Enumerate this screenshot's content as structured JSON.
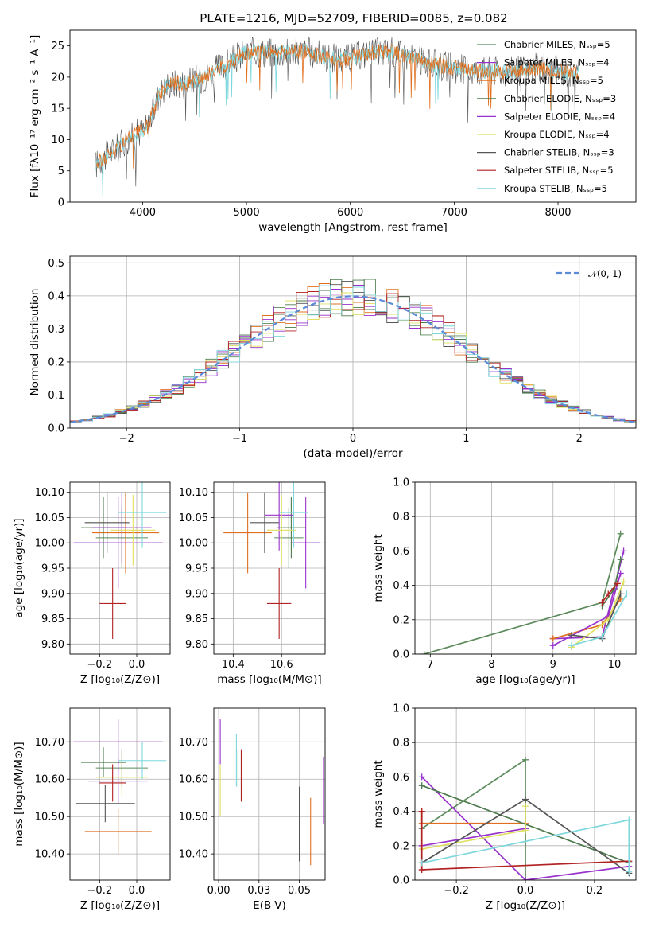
{
  "title": "PLATE=1216, MJD=52709, FIBERID=0085, z=0.082",
  "colors": [
    "#5b8a5b",
    "#9932cc",
    "#e07020",
    "#4d7a4d",
    "#9932cc",
    "#e0e060",
    "#555555",
    "#b22222",
    "#7fd8de"
  ],
  "series_names": [
    "Chabrier MILES, N$_{SSP}$=5",
    "Salpeter MILES, N$_{SSP}$=4",
    "Kroupa MILES, N$_{SSP}$=5",
    "Chabrier ELODIE, N$_{SSP}$=3",
    "Salpeter ELODIE, N$_{SSP}$=4",
    "Kroupa ELODIE, N$_{SSP}$=4",
    "Chabrier STELIB, N$_{SSP}$=3",
    "Salpeter STELIB, N$_{SSP}$=5",
    "Kroupa STELIB, N$_{SSP}$=5"
  ],
  "chart_data": [
    {
      "type": "line",
      "id": "spectrum",
      "xlabel": "wavelength [Angstrom, rest frame]",
      "ylabel": "Flux [f$_\\lambda$10$^{-17}$ erg cm$^{-2}$ s$^{-1}$ A$^{-1}$]",
      "xlim": [
        3300,
        8750
      ],
      "ylim": [
        0,
        27.5
      ],
      "xticks": [
        4000,
        5000,
        6000,
        7000,
        8000
      ],
      "yticks": [
        0,
        5,
        10,
        15,
        20,
        25
      ],
      "x": [
        3550,
        3700,
        3850,
        3950,
        4050,
        4150,
        4250,
        4400,
        4600,
        4800,
        5000,
        5200,
        5400,
        5600,
        5800,
        6000,
        6200,
        6400,
        6600,
        6800,
        7000,
        7200,
        7400,
        7600,
        7800,
        8000,
        8200
      ],
      "y": [
        6,
        8,
        10,
        11,
        12,
        17,
        19,
        19,
        20,
        22,
        24,
        24,
        24,
        24,
        23,
        23,
        24,
        24,
        23,
        22,
        21.5,
        21,
        21,
        21,
        21.5,
        21,
        20.5
      ],
      "legend": "top-right"
    },
    {
      "type": "histogram",
      "id": "residuals",
      "xlabel": "(data-model)/error",
      "ylabel": "Normed distribution",
      "xlim": [
        -2.5,
        2.5
      ],
      "ylim": [
        0,
        0.52
      ],
      "xticks": [
        -2,
        -1,
        0,
        1,
        2
      ],
      "yticks": [
        0.0,
        0.1,
        0.2,
        0.3,
        0.4,
        0.5
      ],
      "reference_curve": "$\\mathcal{N}(0,1)$",
      "legend": "top-right"
    },
    {
      "type": "scatter",
      "id": "age_vs_Z",
      "xlabel": "Z [log$_{10}$(Z/Z$_\\odot$)]",
      "ylabel": "age  [log$_{10}$(age/yr)]",
      "xlim": [
        -0.36,
        0.18
      ],
      "ylim": [
        9.78,
        10.12
      ],
      "xticks": [
        -0.2,
        0.0
      ],
      "yticks": [
        9.8,
        9.85,
        9.9,
        9.95,
        10.0,
        10.05,
        10.1
      ],
      "points": [
        {
          "x": -0.08,
          "y": 10.01,
          "xerr": 0.14,
          "yerr": 0.06
        },
        {
          "x": -0.1,
          "y": 10.0,
          "xerr": 0.24,
          "yerr": 0.09
        },
        {
          "x": -0.06,
          "y": 10.02,
          "xerr": 0.18,
          "yerr": 0.08
        },
        {
          "x": -0.18,
          "y": 10.03,
          "xerr": 0.12,
          "yerr": 0.06
        },
        {
          "x": -0.08,
          "y": 10.03,
          "xerr": 0.16,
          "yerr": 0.07
        },
        {
          "x": -0.02,
          "y": 10.025,
          "xerr": 0.12,
          "yerr": 0.07
        },
        {
          "x": -0.16,
          "y": 10.04,
          "xerr": 0.12,
          "yerr": 0.06
        },
        {
          "x": -0.13,
          "y": 9.88,
          "xerr": 0.07,
          "yerr": 0.07
        },
        {
          "x": 0.03,
          "y": 10.06,
          "xerr": 0.13,
          "yerr": 0.07
        }
      ]
    },
    {
      "type": "scatter",
      "id": "age_vs_mass",
      "xlabel": "mass [log$_{10}$(M/M$_\\odot$)]",
      "ylabel": "",
      "xlim": [
        10.32,
        10.78
      ],
      "ylim": [
        9.78,
        10.12
      ],
      "xticks": [
        10.4,
        10.6
      ],
      "yticks": [
        9.8,
        9.85,
        9.9,
        9.95,
        10.0,
        10.05,
        10.1
      ],
      "points": [
        {
          "x": 10.63,
          "y": 10.01,
          "xerr": 0.06,
          "yerr": 0.06
        },
        {
          "x": 10.7,
          "y": 10.0,
          "xerr": 0.06,
          "yerr": 0.09
        },
        {
          "x": 10.46,
          "y": 10.02,
          "xerr": 0.1,
          "yerr": 0.08
        },
        {
          "x": 10.64,
          "y": 10.03,
          "xerr": 0.06,
          "yerr": 0.06
        },
        {
          "x": 10.59,
          "y": 10.055,
          "xerr": 0.06,
          "yerr": 0.07
        },
        {
          "x": 10.6,
          "y": 10.025,
          "xerr": 0.06,
          "yerr": 0.07
        },
        {
          "x": 10.53,
          "y": 10.04,
          "xerr": 0.06,
          "yerr": 0.06
        },
        {
          "x": 10.59,
          "y": 9.88,
          "xerr": 0.05,
          "yerr": 0.07
        },
        {
          "x": 10.65,
          "y": 10.06,
          "xerr": 0.06,
          "yerr": 0.07
        }
      ]
    },
    {
      "type": "line",
      "id": "mass_weight_vs_age",
      "xlabel": "age  [log$_{10}$(age/yr)]",
      "ylabel": "mass weight",
      "xlim": [
        6.75,
        10.35
      ],
      "ylim": [
        0.0,
        1.0
      ],
      "xticks": [
        7,
        8,
        9,
        10
      ],
      "yticks": [
        0.0,
        0.2,
        0.4,
        0.6,
        0.8,
        1.0
      ],
      "series": [
        {
          "x": [
            6.9,
            9.8,
            10.1
          ],
          "y": [
            0.0,
            0.3,
            0.7
          ]
        },
        {
          "x": [
            9.0,
            9.8,
            10.15
          ],
          "y": [
            0.09,
            0.1,
            0.6
          ]
        },
        {
          "x": [
            9.0,
            9.8,
            10.1
          ],
          "y": [
            0.09,
            0.17,
            0.32
          ]
        },
        {
          "x": [
            9.8,
            10.0,
            10.1
          ],
          "y": [
            0.28,
            0.38,
            0.55
          ]
        },
        {
          "x": [
            9.0,
            9.9,
            10.1
          ],
          "y": [
            0.05,
            0.22,
            0.47
          ]
        },
        {
          "x": [
            9.3,
            9.9,
            10.15
          ],
          "y": [
            0.04,
            0.2,
            0.42
          ]
        },
        {
          "x": [
            9.3,
            9.8,
            10.1
          ],
          "y": [
            0.11,
            0.09,
            0.35
          ]
        },
        {
          "x": [
            9.8,
            9.9,
            10.05
          ],
          "y": [
            0.3,
            0.35,
            0.41
          ]
        },
        {
          "x": [
            9.3,
            9.8,
            10.2
          ],
          "y": [
            0.05,
            0.1,
            0.35
          ]
        }
      ]
    },
    {
      "type": "scatter",
      "id": "mass_vs_Z",
      "xlabel": "Z [log$_{10}$(Z/Z$_\\odot$)]",
      "ylabel": "mass [log$_{10}$(M/M$_\\odot$)]",
      "xlim": [
        -0.36,
        0.18
      ],
      "ylim": [
        10.33,
        10.79
      ],
      "xticks": [
        -0.2,
        0.0
      ],
      "yticks": [
        10.4,
        10.5,
        10.6,
        10.7
      ],
      "points": [
        {
          "x": -0.08,
          "y": 10.63,
          "xerr": 0.14,
          "yerr": 0.05
        },
        {
          "x": -0.1,
          "y": 10.7,
          "xerr": 0.24,
          "yerr": 0.06
        },
        {
          "x": -0.1,
          "y": 10.46,
          "xerr": 0.18,
          "yerr": 0.06
        },
        {
          "x": -0.18,
          "y": 10.645,
          "xerr": 0.12,
          "yerr": 0.04
        },
        {
          "x": -0.1,
          "y": 10.595,
          "xerr": 0.16,
          "yerr": 0.06
        },
        {
          "x": -0.08,
          "y": 10.605,
          "xerr": 0.14,
          "yerr": 0.05
        },
        {
          "x": -0.17,
          "y": 10.535,
          "xerr": 0.16,
          "yerr": 0.05
        },
        {
          "x": -0.13,
          "y": 10.59,
          "xerr": 0.07,
          "yerr": 0.05
        },
        {
          "x": 0.03,
          "y": 10.65,
          "xerr": 0.13,
          "yerr": 0.05
        }
      ]
    },
    {
      "type": "scatter",
      "id": "mass_vs_ebv",
      "xlabel": "E(B-V)",
      "ylabel": "",
      "xlim": [
        -0.003,
        0.066
      ],
      "ylim": [
        10.33,
        10.79
      ],
      "xticks": [
        0.0,
        0.025,
        0.05
      ],
      "yticks": [
        10.4,
        10.5,
        10.6,
        10.7
      ],
      "points": [
        {
          "x": 0.012,
          "y": 10.63,
          "yerr": 0.05
        },
        {
          "x": 0.001,
          "y": 10.7,
          "yerr": 0.06
        },
        {
          "x": 0.057,
          "y": 10.46,
          "yerr": 0.09
        },
        {
          "x": 0.014,
          "y": 10.61,
          "yerr": 0.07
        },
        {
          "x": 0.065,
          "y": 10.57,
          "yerr": 0.09
        },
        {
          "x": 0.001,
          "y": 10.57,
          "yerr": 0.07
        },
        {
          "x": 0.05,
          "y": 10.48,
          "yerr": 0.1
        },
        {
          "x": 0.014,
          "y": 10.61,
          "yerr": 0.07
        },
        {
          "x": 0.011,
          "y": 10.65,
          "yerr": 0.07
        }
      ]
    },
    {
      "type": "line",
      "id": "mass_weight_vs_Z",
      "xlabel": "Z [log$_{10}$(Z/Z$_\\odot$)]",
      "ylabel": "mass weight",
      "xlim": [
        -0.32,
        0.32
      ],
      "ylim": [
        0.0,
        1.0
      ],
      "xticks": [
        -0.2,
        0.0,
        0.2
      ],
      "yticks": [
        0.0,
        0.2,
        0.4,
        0.6,
        0.8,
        1.0
      ],
      "series": [
        {
          "x": [
            -0.3,
            0.0,
            0.0
          ],
          "y": [
            0.3,
            0.7,
            0.0
          ]
        },
        {
          "x": [
            -0.3,
            0.0,
            0.3
          ],
          "y": [
            0.6,
            0.0,
            0.08
          ]
        },
        {
          "x": [
            -0.3,
            -0.3,
            0.0
          ],
          "y": [
            0.4,
            0.33,
            0.33
          ]
        },
        {
          "x": [
            -0.3,
            0.3,
            0.3
          ],
          "y": [
            0.55,
            0.1,
            0.1
          ]
        },
        {
          "x": [
            -0.3,
            0.0,
            0.0
          ],
          "y": [
            0.2,
            0.3,
            0.3
          ]
        },
        {
          "x": [
            -0.3,
            0.0,
            0.0
          ],
          "y": [
            0.18,
            0.29,
            0.43
          ]
        },
        {
          "x": [
            -0.3,
            0.0,
            0.3
          ],
          "y": [
            0.1,
            0.47,
            0.04
          ]
        },
        {
          "x": [
            -0.3,
            -0.3,
            0.3
          ],
          "y": [
            0.4,
            0.06,
            0.11
          ]
        },
        {
          "x": [
            -0.3,
            0.3,
            0.3
          ],
          "y": [
            0.1,
            0.35,
            0.05
          ]
        }
      ]
    }
  ]
}
